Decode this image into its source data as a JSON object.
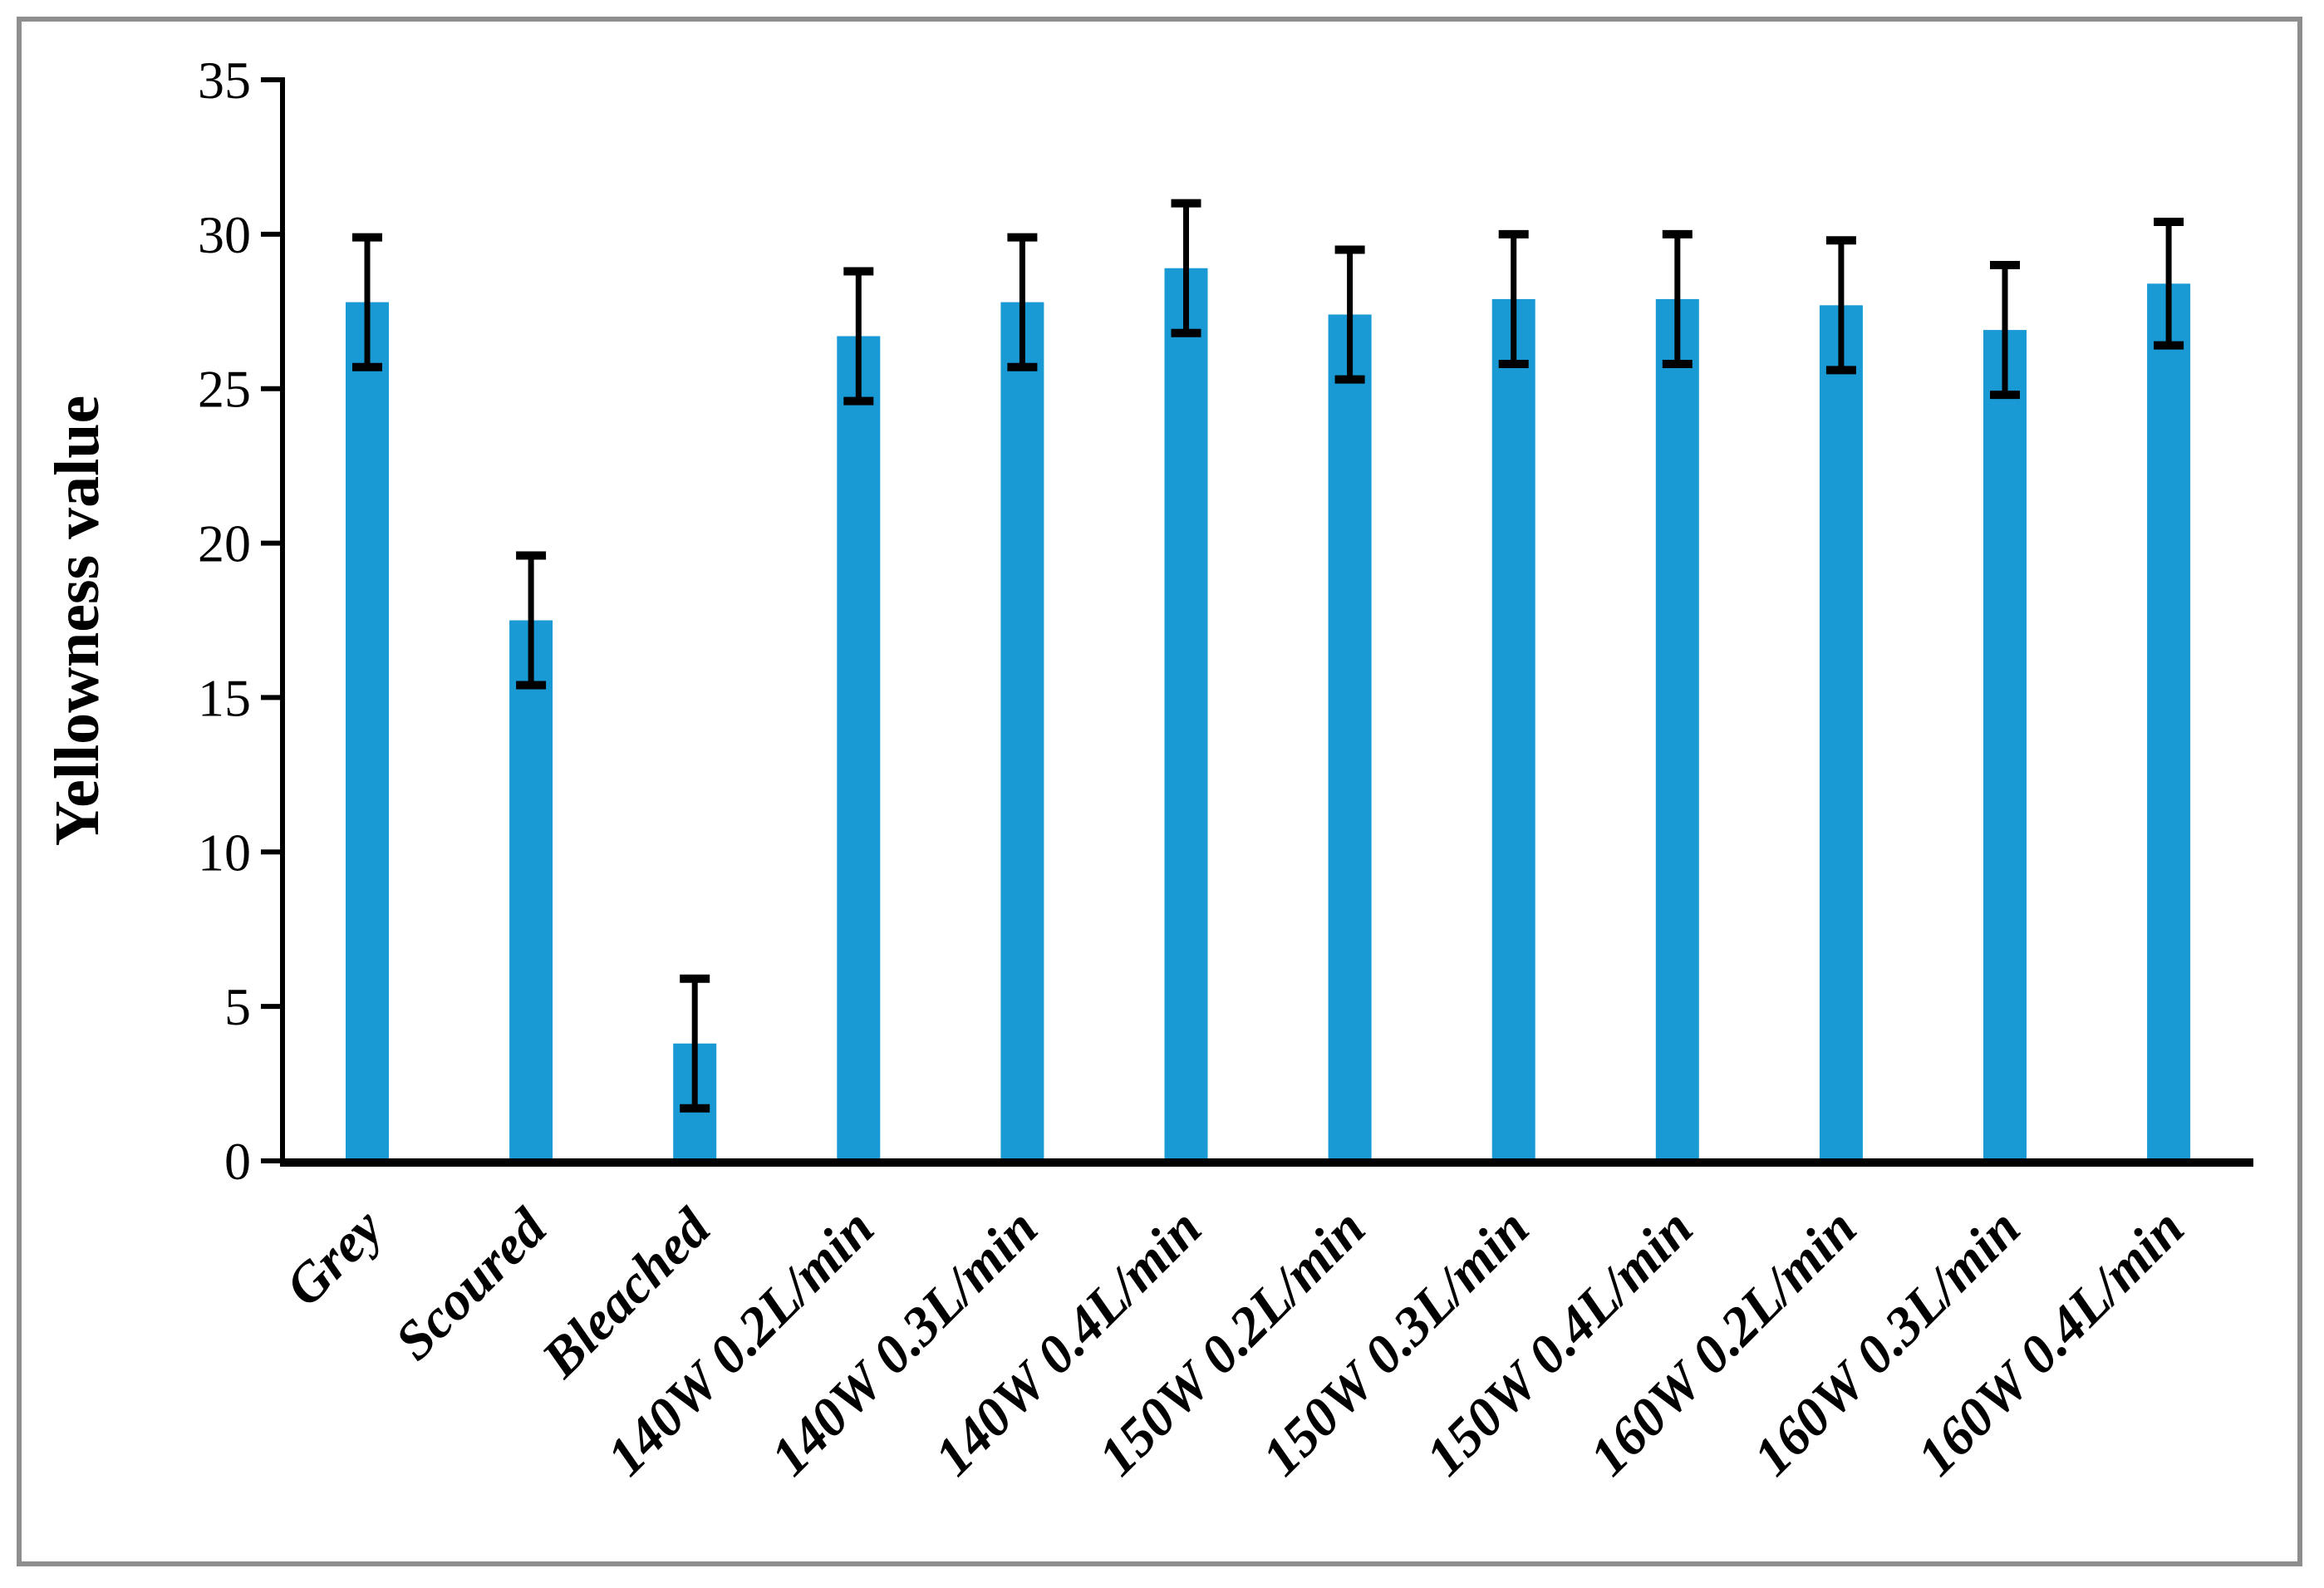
{
  "figure": {
    "background": "#ffffff",
    "border_color": "#8e8e8e"
  },
  "chart_data": {
    "type": "bar",
    "title": "",
    "xlabel": "",
    "ylabel": "Yellowness value",
    "ylim": [
      0,
      35
    ],
    "ytick_step": 5,
    "yticks": [
      0,
      5,
      10,
      15,
      20,
      25,
      30,
      35
    ],
    "grid": false,
    "legend": null,
    "bar_color": "#1a9ad4",
    "error_bar_color": "#000000",
    "axis_color": "#000000",
    "categories": [
      "Grey",
      "Scoured",
      "Bleached",
      "140W 0.2L/min",
      "140W 0.3L/min",
      "140W 0.4L/min",
      "150W 0.2L/min",
      "150W 0.3L/min",
      "150W 0.4L/min",
      "160W 0.2L/min",
      "160W 0.3L/min",
      "160W 0.4L/min"
    ],
    "values": [
      27.8,
      17.5,
      3.8,
      26.7,
      27.8,
      28.9,
      27.4,
      27.9,
      27.9,
      27.7,
      26.9,
      28.4
    ],
    "errors": [
      2.1,
      2.1,
      2.1,
      2.1,
      2.1,
      2.1,
      2.1,
      2.1,
      2.1,
      2.1,
      2.1,
      2.0
    ]
  }
}
